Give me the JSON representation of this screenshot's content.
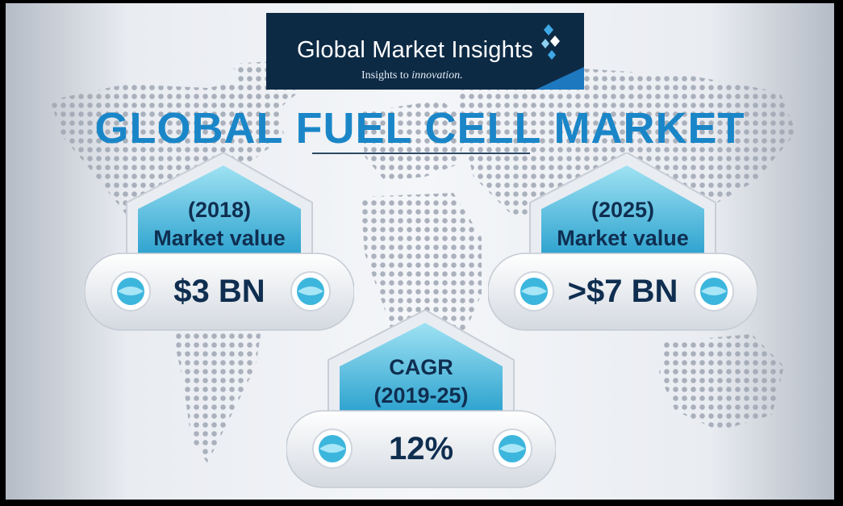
{
  "brand": {
    "name": "Global Market Insights",
    "tagline_prefix": "Insights to ",
    "tagline_emphasis": "innovation."
  },
  "title": "GLOBAL FUEL CELL MARKET",
  "cards": [
    {
      "line1": "(2018)",
      "line2": "Market value",
      "value": "$3 BN"
    },
    {
      "line1": "(2025)",
      "line2": "Market value",
      "value": ">$7 BN"
    },
    {
      "line1": "CAGR",
      "line2": "(2019-25)",
      "value": "12%"
    }
  ],
  "colors": {
    "title": "#1a86c8",
    "navy": "#0d2a45",
    "label_text": "#0f2e50",
    "cyan": "#3fb8db"
  }
}
